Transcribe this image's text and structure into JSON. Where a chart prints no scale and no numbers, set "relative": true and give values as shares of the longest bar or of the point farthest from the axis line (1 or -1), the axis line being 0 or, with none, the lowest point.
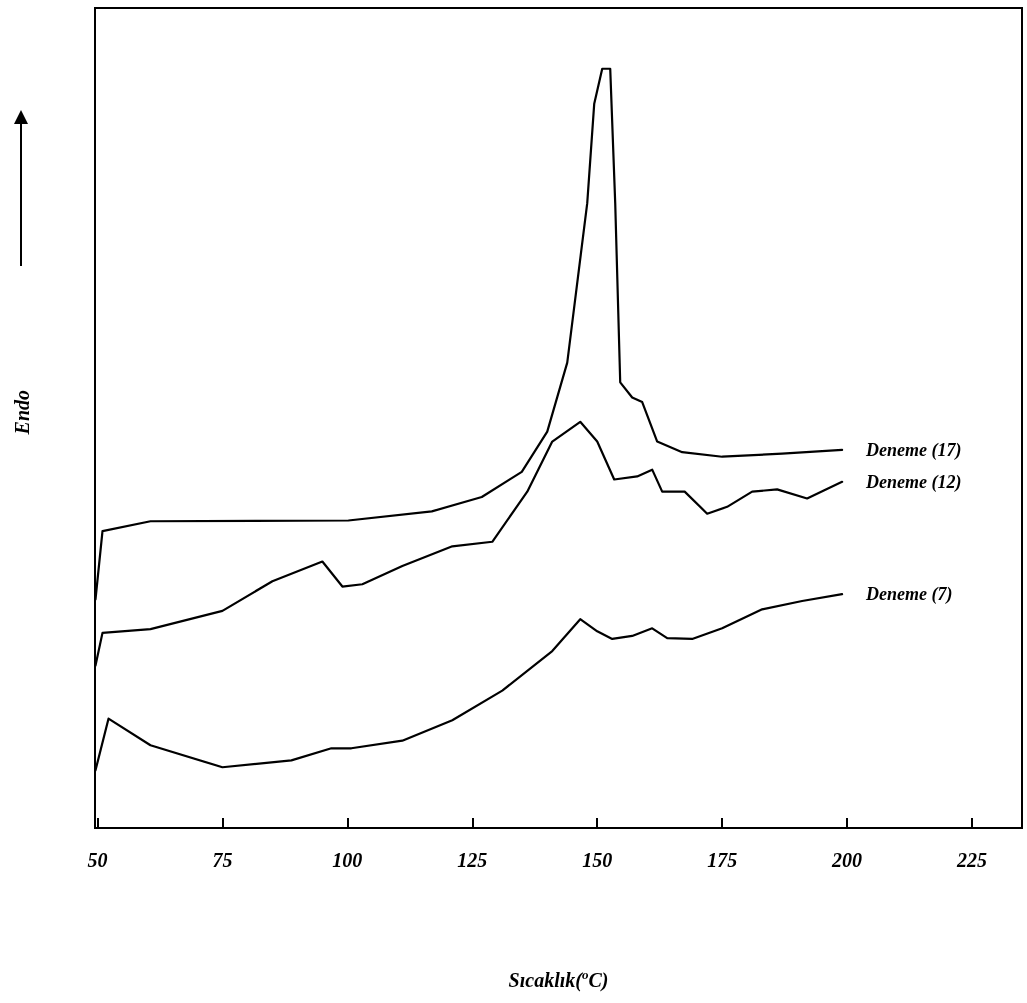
{
  "chart_data": {
    "type": "line",
    "relative": true,
    "xlabel": "Sıcaklık($^{o}$C)",
    "ylabel": "Endo",
    "xlim": [
      49.5,
      235
    ],
    "xticks": [
      50,
      75,
      100,
      125,
      150,
      175,
      200,
      225
    ],
    "grid": false,
    "legend": false,
    "marker": "none",
    "line_style": "solid",
    "series": [
      {
        "name": "Deneme (17)",
        "color": "#000000",
        "x": [
          49.6,
          51,
          60.6,
          100.2,
          116.9,
          126.9,
          134.9,
          140,
          144,
          148,
          149.4,
          151,
          152.6,
          153.6,
          154.6,
          157,
          159,
          162,
          167,
          175,
          187,
          199
        ],
        "values": [
          0.301,
          0.391,
          0.404,
          0.405,
          0.417,
          0.436,
          0.469,
          0.522,
          0.613,
          0.823,
          0.954,
          1.0,
          1.0,
          0.823,
          0.587,
          0.567,
          0.561,
          0.509,
          0.495,
          0.489,
          0.493,
          0.498
        ]
      },
      {
        "name": "Deneme (12)",
        "color": "#000000",
        "x": [
          49.6,
          51,
          60.6,
          75,
          85,
          95,
          99,
          103,
          111,
          121,
          129,
          136,
          141,
          146.6,
          150,
          153.4,
          158,
          161,
          163,
          167.5,
          172,
          176,
          181,
          186,
          192,
          199
        ],
        "values": [
          0.214,
          0.257,
          0.262,
          0.286,
          0.325,
          0.351,
          0.318,
          0.321,
          0.345,
          0.371,
          0.377,
          0.443,
          0.509,
          0.535,
          0.509,
          0.459,
          0.463,
          0.472,
          0.443,
          0.443,
          0.414,
          0.423,
          0.443,
          0.446,
          0.434,
          0.456
        ]
      },
      {
        "name": "Deneme (7)",
        "color": "#000000",
        "x": [
          49.6,
          52.2,
          60.6,
          75,
          88.8,
          96.8,
          100.8,
          111,
          121,
          131,
          141,
          146.6,
          150,
          153,
          157,
          161,
          164,
          169,
          175,
          183,
          191,
          199
        ],
        "values": [
          0.076,
          0.144,
          0.109,
          0.08,
          0.089,
          0.105,
          0.105,
          0.115,
          0.142,
          0.181,
          0.233,
          0.275,
          0.259,
          0.249,
          0.253,
          0.263,
          0.25,
          0.249,
          0.263,
          0.288,
          0.299,
          0.308
        ]
      }
    ]
  }
}
